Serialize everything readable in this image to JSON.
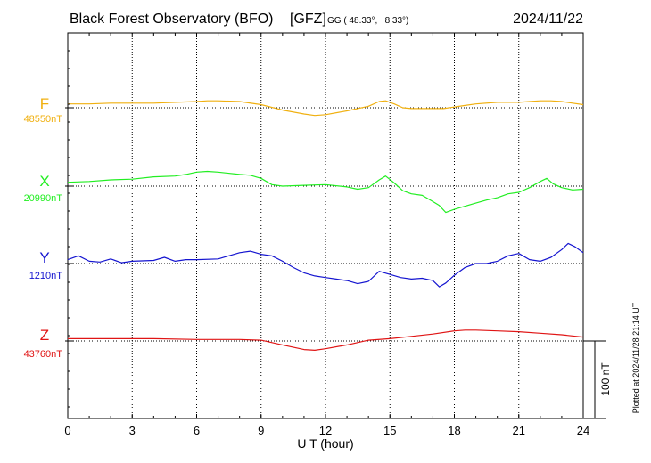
{
  "chart_data": {
    "type": "line",
    "title": "Black Forest Observatory (BFO)",
    "source_tag": "[GFZ]",
    "coord_label": "GG ( 48.33°,   8.33°)",
    "date": "2024/11/22",
    "xlabel": "U T (hour)",
    "xlim": [
      0,
      24
    ],
    "x_ticks": [
      "0",
      "3",
      "6",
      "9",
      "12",
      "15",
      "18",
      "21",
      "24"
    ],
    "scale_bar_label": "100 nT",
    "scale_bar_nT": 100,
    "plotted_note": "Plotted at 2024/11/28 21:14 UT",
    "series": [
      {
        "name": "F",
        "baseline_label": "48550nT",
        "baseline_nT": 48550,
        "color": "#f0b010",
        "points": [
          [
            0,
            5
          ],
          [
            1,
            5
          ],
          [
            2,
            6
          ],
          [
            3,
            6
          ],
          [
            4,
            6
          ],
          [
            5,
            7
          ],
          [
            6,
            8
          ],
          [
            6.5,
            9
          ],
          [
            7,
            9
          ],
          [
            8,
            8
          ],
          [
            9,
            4
          ],
          [
            10,
            -3
          ],
          [
            11,
            -8
          ],
          [
            11.5,
            -10
          ],
          [
            12,
            -9
          ],
          [
            13,
            -4
          ],
          [
            14,
            2
          ],
          [
            14.5,
            8
          ],
          [
            14.8,
            9
          ],
          [
            15.2,
            5
          ],
          [
            15.6,
            0
          ],
          [
            16,
            -1
          ],
          [
            17,
            -1
          ],
          [
            17.5,
            -1
          ],
          [
            18,
            1
          ],
          [
            18.5,
            3
          ],
          [
            19,
            5
          ],
          [
            20,
            7
          ],
          [
            21,
            7
          ],
          [
            21.5,
            8
          ],
          [
            22,
            9
          ],
          [
            22.5,
            9
          ],
          [
            23,
            8
          ],
          [
            23.5,
            6
          ],
          [
            24,
            4
          ]
        ]
      },
      {
        "name": "X",
        "baseline_label": "20990nT",
        "baseline_nT": 20990,
        "color": "#22ee22",
        "points": [
          [
            0,
            5
          ],
          [
            1,
            6
          ],
          [
            2,
            8
          ],
          [
            3,
            9
          ],
          [
            4,
            12
          ],
          [
            5,
            13
          ],
          [
            5.5,
            15
          ],
          [
            6,
            18
          ],
          [
            6.5,
            19
          ],
          [
            7,
            18
          ],
          [
            8,
            15
          ],
          [
            8.5,
            14
          ],
          [
            9,
            10
          ],
          [
            9.5,
            2
          ],
          [
            10,
            0
          ],
          [
            11,
            1
          ],
          [
            12,
            2
          ],
          [
            13,
            -1
          ],
          [
            13.5,
            -4
          ],
          [
            14,
            -2
          ],
          [
            14.5,
            8
          ],
          [
            14.8,
            13
          ],
          [
            15.2,
            4
          ],
          [
            15.6,
            -6
          ],
          [
            16,
            -10
          ],
          [
            16.5,
            -12
          ],
          [
            17,
            -20
          ],
          [
            17.3,
            -25
          ],
          [
            17.6,
            -34
          ],
          [
            18,
            -30
          ],
          [
            18.5,
            -26
          ],
          [
            19,
            -22
          ],
          [
            19.5,
            -18
          ],
          [
            20,
            -15
          ],
          [
            20.5,
            -10
          ],
          [
            21,
            -8
          ],
          [
            21.5,
            -2
          ],
          [
            22,
            6
          ],
          [
            22.3,
            10
          ],
          [
            22.6,
            3
          ],
          [
            23,
            -2
          ],
          [
            23.5,
            -5
          ],
          [
            24,
            -4
          ]
        ]
      },
      {
        "name": "Y",
        "baseline_label": "1210nT",
        "baseline_nT": 1210,
        "color": "#1515d0",
        "points": [
          [
            0,
            5
          ],
          [
            0.5,
            10
          ],
          [
            1,
            3
          ],
          [
            1.5,
            2
          ],
          [
            2,
            6
          ],
          [
            2.5,
            1
          ],
          [
            3,
            3
          ],
          [
            4,
            4
          ],
          [
            4.5,
            8
          ],
          [
            5,
            3
          ],
          [
            5.5,
            5
          ],
          [
            6,
            5
          ],
          [
            7,
            6
          ],
          [
            7.5,
            10
          ],
          [
            8,
            14
          ],
          [
            8.5,
            16
          ],
          [
            9,
            12
          ],
          [
            9.5,
            10
          ],
          [
            10,
            3
          ],
          [
            10.5,
            -5
          ],
          [
            11,
            -12
          ],
          [
            11.5,
            -16
          ],
          [
            12,
            -18
          ],
          [
            12.5,
            -20
          ],
          [
            13,
            -22
          ],
          [
            13.5,
            -26
          ],
          [
            14,
            -23
          ],
          [
            14.5,
            -10
          ],
          [
            15,
            -14
          ],
          [
            15.5,
            -18
          ],
          [
            16,
            -20
          ],
          [
            16.5,
            -19
          ],
          [
            17,
            -22
          ],
          [
            17.3,
            -30
          ],
          [
            17.6,
            -25
          ],
          [
            18,
            -15
          ],
          [
            18.5,
            -5
          ],
          [
            19,
            0
          ],
          [
            19.5,
            0
          ],
          [
            20,
            3
          ],
          [
            20.5,
            10
          ],
          [
            21,
            13
          ],
          [
            21.5,
            5
          ],
          [
            22,
            3
          ],
          [
            22.5,
            8
          ],
          [
            23,
            18
          ],
          [
            23.3,
            26
          ],
          [
            23.6,
            22
          ],
          [
            24,
            14
          ]
        ]
      },
      {
        "name": "Z",
        "baseline_label": "43760nT",
        "baseline_nT": 43760,
        "color": "#e01515",
        "points": [
          [
            0,
            3
          ],
          [
            2,
            3
          ],
          [
            4,
            3
          ],
          [
            6,
            2
          ],
          [
            8,
            2
          ],
          [
            9,
            1
          ],
          [
            10,
            -5
          ],
          [
            11,
            -11
          ],
          [
            11.5,
            -12
          ],
          [
            12,
            -10
          ],
          [
            13,
            -5
          ],
          [
            14,
            1
          ],
          [
            15,
            3
          ],
          [
            16,
            6
          ],
          [
            17,
            9
          ],
          [
            18,
            13
          ],
          [
            18.5,
            14
          ],
          [
            19,
            14
          ],
          [
            20,
            13
          ],
          [
            21,
            12
          ],
          [
            22,
            10
          ],
          [
            23,
            8
          ],
          [
            24,
            5
          ]
        ]
      }
    ]
  }
}
